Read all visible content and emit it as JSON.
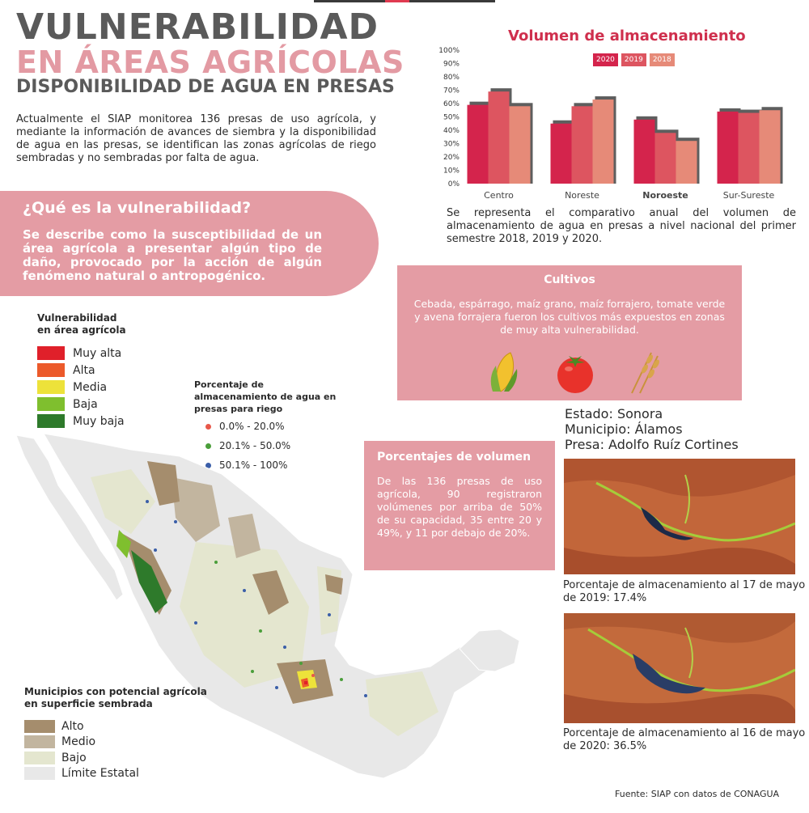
{
  "header": {
    "line1": "VULNERABILIDAD",
    "line2": "EN ÁREAS AGRÍCOLAS",
    "line3": "DISPONIBILIDAD DE AGUA EN PRESAS"
  },
  "intro": "Actualmente el SIAP monitorea 136 presas de uso agrícola, y mediante la información de avances de siembra y la disponibilidad de agua en las presas, se identifican las zonas agrícolas de riego sembradas y no sembradas por falta de agua.",
  "vulnerability": {
    "question": "¿Qué es la vulnerabilidad?",
    "answer": "Se describe como la susceptibilidad de un área agrícola a presentar algún tipo de daño, provocado por la acción de algún fenómeno natural o antropogénico."
  },
  "legend_vulnerability": {
    "title": "Vulnerabilidad en área agrícola",
    "items": [
      {
        "label": "Muy alta",
        "color": "#e0202a"
      },
      {
        "label": "Alta",
        "color": "#ec5a2b"
      },
      {
        "label": "Media",
        "color": "#ede23a"
      },
      {
        "label": "Baja",
        "color": "#7fbf2e"
      },
      {
        "label": "Muy baja",
        "color": "#2e7a2b"
      }
    ]
  },
  "legend_storage": {
    "title": "Porcentaje de almacenamiento de agua en presas para riego",
    "items": [
      {
        "label": "0.0% - 20.0%",
        "color": "#e8584a"
      },
      {
        "label": "20.1% - 50.0%",
        "color": "#4a9e3a"
      },
      {
        "label": "50.1% - 100%",
        "color": "#3a5ea8"
      }
    ]
  },
  "legend_municipalities": {
    "title": "Municipios con potencial agrícola en superficie sembrada",
    "items": [
      {
        "label": "Alto",
        "color": "#a58d6d"
      },
      {
        "label": "Medio",
        "color": "#c2b59f"
      },
      {
        "label": "Bajo",
        "color": "#e4e6cf"
      },
      {
        "label": "Límite Estatal",
        "color": "#e8e8e8"
      }
    ]
  },
  "chart_data": {
    "type": "bar",
    "title": "Volumen de almacenamiento",
    "categories": [
      "Centro",
      "Noreste",
      "Noroeste",
      "Sur-Sureste"
    ],
    "series": [
      {
        "name": "2020",
        "color": "#d4244c",
        "values": [
          59,
          45,
          48,
          54
        ]
      },
      {
        "name": "2019",
        "color": "#dd5560",
        "values": [
          69,
          58,
          38,
          53
        ]
      },
      {
        "name": "2018",
        "color": "#e68a78",
        "values": [
          58,
          63,
          32,
          55
        ]
      }
    ],
    "ylim": [
      0,
      100
    ],
    "yticks": [
      "0%",
      "10%",
      "20%",
      "30%",
      "40%",
      "50%",
      "60%",
      "70%",
      "80%",
      "90%",
      "100%"
    ],
    "grid": false,
    "legend": "top"
  },
  "chart_description": "Se representa el comparativo anual del volumen de almacenamiento de agua en presas a nivel nacional del primer semestre 2018, 2019 y 2020.",
  "crops": {
    "title": "Cultivos",
    "text": "Cebada, espárrago, maíz grano, maíz forrajero, tomate verde y avena forrajera fueron los cultivos más expuestos en zonas de muy alta vulnerabilidad.",
    "icons": [
      "corn-icon",
      "tomato-icon",
      "wheat-icon"
    ]
  },
  "dam": {
    "state": "Estado: Sonora",
    "municipality": "Municipio: Álamos",
    "dam": "Presa: Adolfo Ruíz Cortines"
  },
  "volume_percentages": {
    "title": "Porcentajes de volumen",
    "text": "De las 136 presas de uso agrícola, 90 registraron volúmenes por arriba de 50% de su capacidad, 35 entre 20 y 49%, y 11 por debajo de 20%."
  },
  "satellite": {
    "caption_2019": "Porcentaje de almacenamiento al 17 de mayo de 2019: 17.4%",
    "caption_2020": "Porcentaje de almacenamiento al 16 de mayo de 2020: 36.5%"
  },
  "source": "Fuente: SIAP con datos de CONAGUA"
}
